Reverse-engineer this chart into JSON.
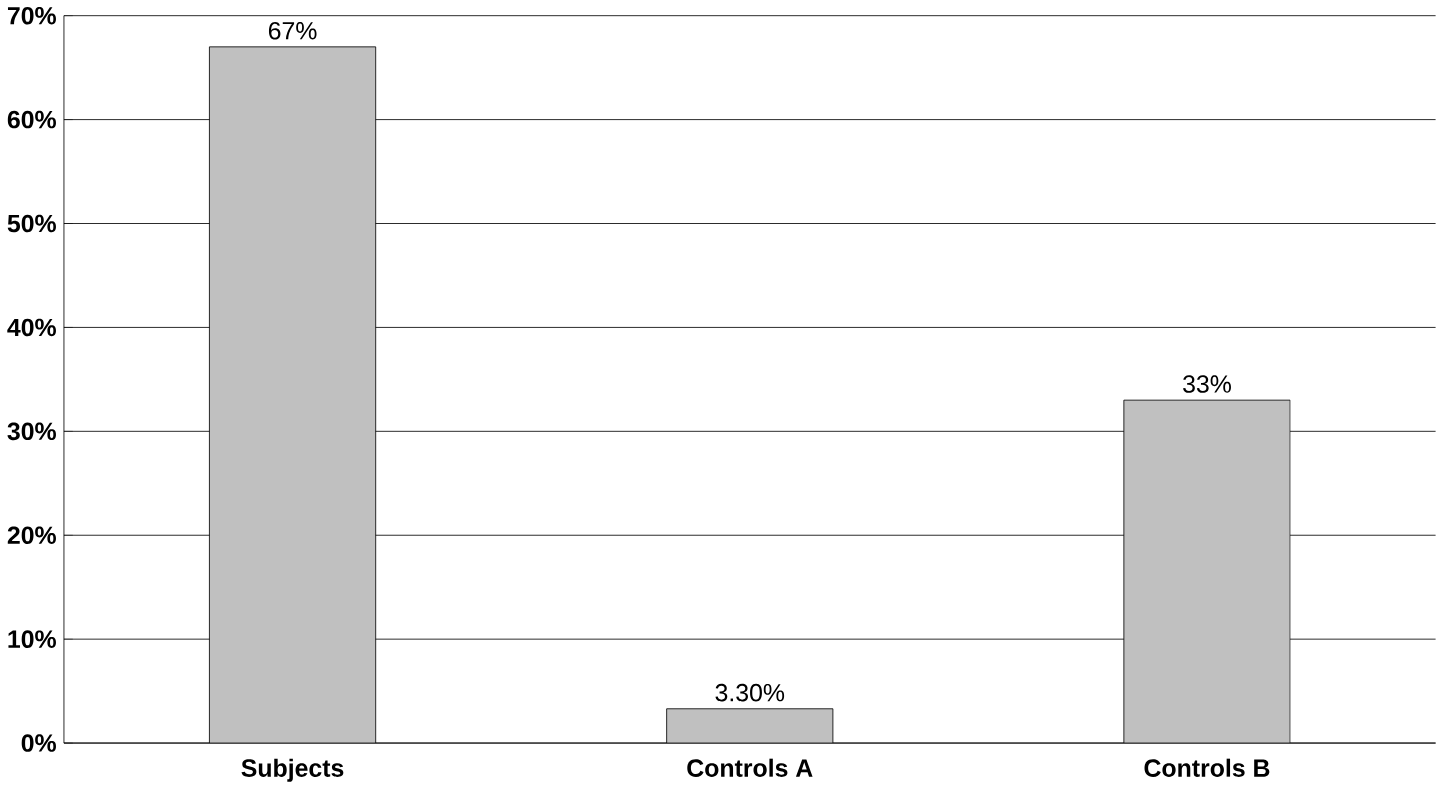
{
  "chart_data": {
    "type": "bar",
    "categories": [
      "Subjects",
      "Controls A",
      "Controls B"
    ],
    "values": [
      67,
      3.3,
      33
    ],
    "value_labels": [
      "67%",
      "3.30%",
      "33%"
    ],
    "color": "#c0c0c0",
    "ylim": [
      0,
      70
    ],
    "yticks": [
      {
        "value": 0,
        "label": "0%"
      },
      {
        "value": 10,
        "label": "10%"
      },
      {
        "value": 20,
        "label": "20%"
      },
      {
        "value": 30,
        "label": "30%"
      },
      {
        "value": 40,
        "label": "40%"
      },
      {
        "value": 50,
        "label": "50%"
      },
      {
        "value": 60,
        "label": "60%"
      },
      {
        "value": 70,
        "label": "70%"
      }
    ],
    "grid": "y"
  }
}
